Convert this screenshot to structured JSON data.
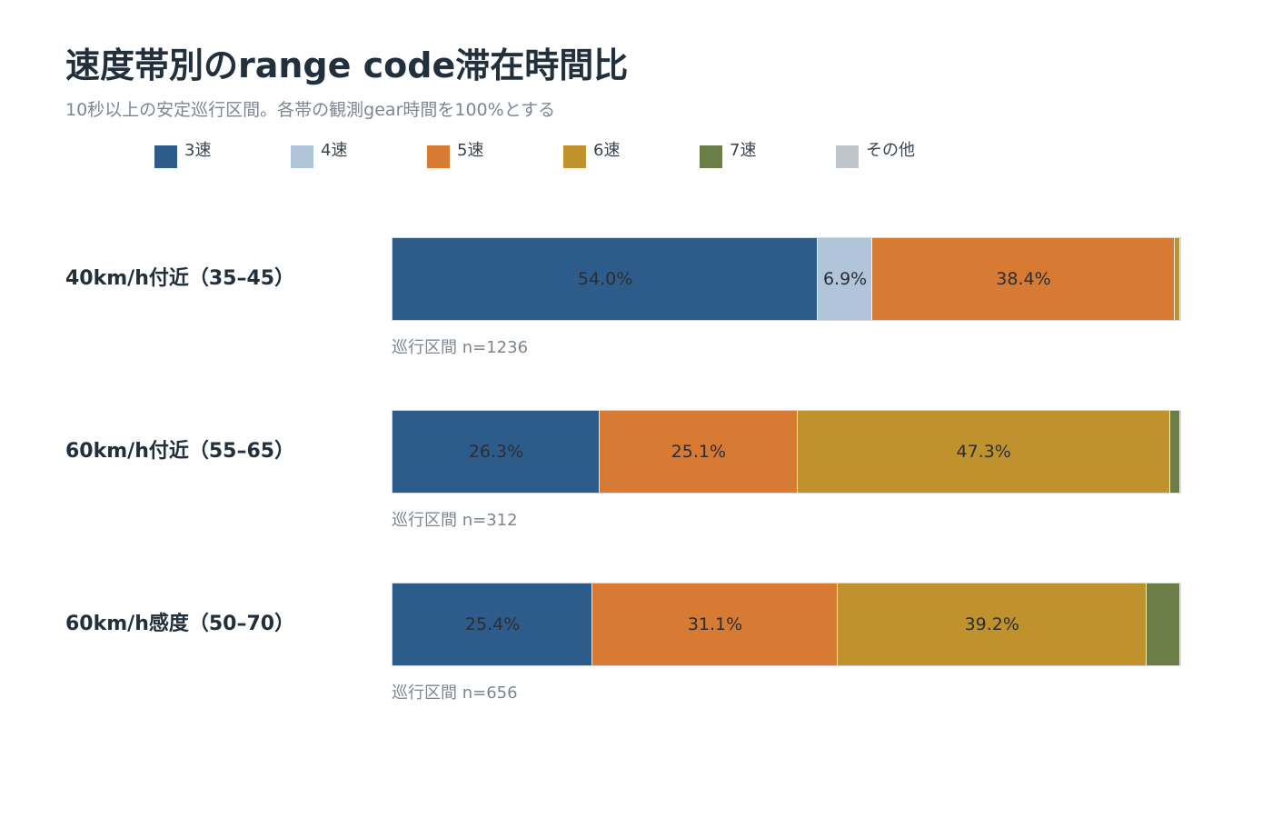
{
  "title": "速度帯別のrange code滞在時間比",
  "subtitle": "10秒以上の安定巡行区間。各帯の観測gear時間を100%とする",
  "chart_data": {
    "type": "bar",
    "orientation": "horizontal",
    "stacked": true,
    "normalized_percent": true,
    "xlim": [
      0,
      100
    ],
    "legend_position": "top",
    "grid": false,
    "categories": [
      "40km/h付近（35–45）",
      "60km/h付近（55–65）",
      "60km/h感度（50–70）"
    ],
    "notes": [
      "巡行区間 n=1236",
      "巡行区間 n=312",
      "巡行区間 n=656"
    ],
    "series": [
      {
        "name": "3速",
        "color": "#2e5c8a",
        "values": [
          54.0,
          26.3,
          25.4
        ]
      },
      {
        "name": "4速",
        "color": "#b0c4da",
        "values": [
          6.9,
          0.0,
          0.0
        ]
      },
      {
        "name": "5速",
        "color": "#d67a34",
        "values": [
          38.4,
          25.1,
          31.1
        ]
      },
      {
        "name": "6速",
        "color": "#c0922d",
        "values": [
          0.7,
          47.3,
          39.2
        ]
      },
      {
        "name": "7速",
        "color": "#6b7e48",
        "values": [
          0.0,
          1.3,
          4.3
        ]
      },
      {
        "name": "その他",
        "color": "#bfc5ca",
        "values": [
          0.0,
          0.0,
          0.0
        ]
      }
    ],
    "label_min_percent": 5
  }
}
